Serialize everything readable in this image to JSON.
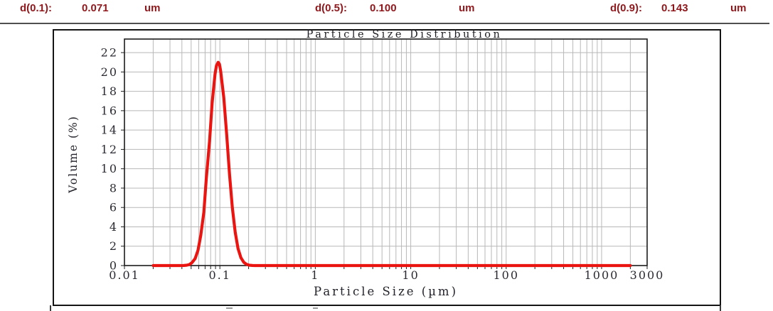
{
  "header": {
    "text_color": "#8e181c",
    "metrics": [
      {
        "label": "d(0.1):",
        "value": "0.071",
        "unit": "um"
      },
      {
        "label": "d(0.5):",
        "value": "0.100",
        "unit": "um"
      },
      {
        "label": "d(0.9):",
        "value": "0.143",
        "unit": "um"
      }
    ]
  },
  "chart_data": {
    "type": "line",
    "title": "Particle Size Distribution",
    "xlabel": "Particle Size (µm)",
    "ylabel": "Volume (%)",
    "x_scale": "log",
    "xlim": [
      0.01,
      3000
    ],
    "ylim": [
      0,
      23.4
    ],
    "grid": true,
    "grid_color": "#b8b8b8",
    "axis_color": "#1c1c1c",
    "x_ticks": [
      "0.01",
      "0.1",
      "1",
      "10",
      "100",
      "1000",
      "3000"
    ],
    "x_tick_values": [
      0.01,
      0.1,
      1,
      10,
      100,
      1000,
      3000
    ],
    "y_ticks": [
      0,
      2,
      4,
      6,
      8,
      10,
      12,
      14,
      16,
      18,
      20,
      22
    ],
    "series": [
      {
        "name": "Volume (%)",
        "color": "#ea1410",
        "points": [
          [
            0.02,
            0
          ],
          [
            0.036,
            0
          ],
          [
            0.039,
            0
          ],
          [
            0.042,
            0.01
          ],
          [
            0.045,
            0.04
          ],
          [
            0.048,
            0.11
          ],
          [
            0.051,
            0.3
          ],
          [
            0.055,
            0.72
          ],
          [
            0.059,
            1.57
          ],
          [
            0.063,
            3.11
          ],
          [
            0.068,
            5.54
          ],
          [
            0.072,
            8.9
          ],
          [
            0.078,
            12.87
          ],
          [
            0.083,
            16.8
          ],
          [
            0.089,
            19.78
          ],
          [
            0.092,
            20.64
          ],
          [
            0.096,
            21
          ],
          [
            0.099,
            20.81
          ],
          [
            0.102,
            20.09
          ],
          [
            0.11,
            17.35
          ],
          [
            0.118,
            13.5
          ],
          [
            0.126,
            9.48
          ],
          [
            0.135,
            5.99
          ],
          [
            0.145,
            3.42
          ],
          [
            0.155,
            1.76
          ],
          [
            0.166,
            0.82
          ],
          [
            0.178,
            0.34
          ],
          [
            0.19,
            0.13
          ],
          [
            0.204,
            0.04
          ],
          [
            0.219,
            0.01
          ],
          [
            0.234,
            0
          ],
          [
            0.3,
            0
          ],
          [
            0.5,
            0
          ],
          [
            1,
            0
          ],
          [
            2,
            0
          ],
          [
            5,
            0
          ],
          [
            10,
            0
          ],
          [
            20,
            0
          ],
          [
            50,
            0
          ],
          [
            100,
            0
          ],
          [
            200,
            0
          ],
          [
            500,
            0
          ],
          [
            1000,
            0
          ],
          [
            2000,
            0
          ]
        ]
      }
    ]
  }
}
